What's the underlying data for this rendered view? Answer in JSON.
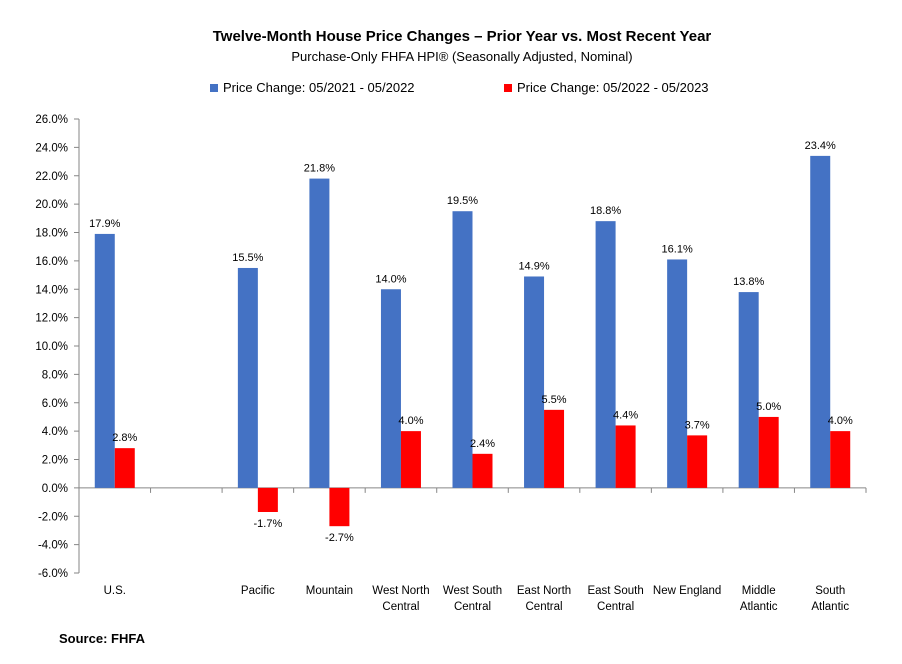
{
  "chart_data": {
    "type": "bar",
    "title": "Twelve-Month House Price Changes – Prior Year vs. Most Recent Year",
    "subtitle": "Purchase-Only FHFA HPI® (Seasonally Adjusted, Nominal)",
    "categories": [
      [
        "U.S."
      ],
      [
        ""
      ],
      [
        "Pacific"
      ],
      [
        "Mountain"
      ],
      [
        "West North",
        "Central"
      ],
      [
        "West South",
        "Central"
      ],
      [
        "East North",
        "Central"
      ],
      [
        "East South",
        "Central"
      ],
      [
        "New England"
      ],
      [
        "Middle",
        "Atlantic"
      ],
      [
        "South",
        "Atlantic"
      ]
    ],
    "series": [
      {
        "name": "Price Change:  05/2021 - 05/2022",
        "color": "#4472C4",
        "values": [
          17.9,
          null,
          15.5,
          21.8,
          14.0,
          19.5,
          14.9,
          18.8,
          16.1,
          13.8,
          23.4
        ],
        "labels": [
          "17.9%",
          "",
          "15.5%",
          "21.8%",
          "14.0%",
          "19.5%",
          "14.9%",
          "18.8%",
          "16.1%",
          "13.8%",
          "23.4%"
        ]
      },
      {
        "name": "Price Change:  05/2022 - 05/2023",
        "color": "#FF0000",
        "values": [
          2.8,
          null,
          -1.7,
          -2.7,
          4.0,
          2.4,
          5.5,
          4.4,
          3.7,
          5.0,
          4.0
        ],
        "labels": [
          "2.8%",
          "",
          "-1.7%",
          "-2.7%",
          "4.0%",
          "2.4%",
          "5.5%",
          "4.4%",
          "3.7%",
          "5.0%",
          "4.0%"
        ]
      }
    ],
    "ylim": [
      -6,
      26
    ],
    "yticks": [
      {
        "v": 26,
        "label": "26.0%"
      },
      {
        "v": 24,
        "label": "24.0%"
      },
      {
        "v": 22,
        "label": "22.0%"
      },
      {
        "v": 20,
        "label": "20.0%"
      },
      {
        "v": 18,
        "label": "18.0%"
      },
      {
        "v": 16,
        "label": "16.0%"
      },
      {
        "v": 14,
        "label": "14.0%"
      },
      {
        "v": 12,
        "label": "12.0%"
      },
      {
        "v": 10,
        "label": "10.0%"
      },
      {
        "v": 8,
        "label": "8.0%"
      },
      {
        "v": 6,
        "label": "6.0%"
      },
      {
        "v": 4,
        "label": "4.0%"
      },
      {
        "v": 2,
        "label": "2.0%"
      },
      {
        "v": 0,
        "label": "0.0%"
      },
      {
        "v": -2,
        "label": "-2.0%"
      },
      {
        "v": -4,
        "label": "-4.0%"
      },
      {
        "v": -6,
        "label": "-6.0%"
      }
    ],
    "grid": false,
    "legend": "top"
  },
  "source": "Source: FHFA"
}
